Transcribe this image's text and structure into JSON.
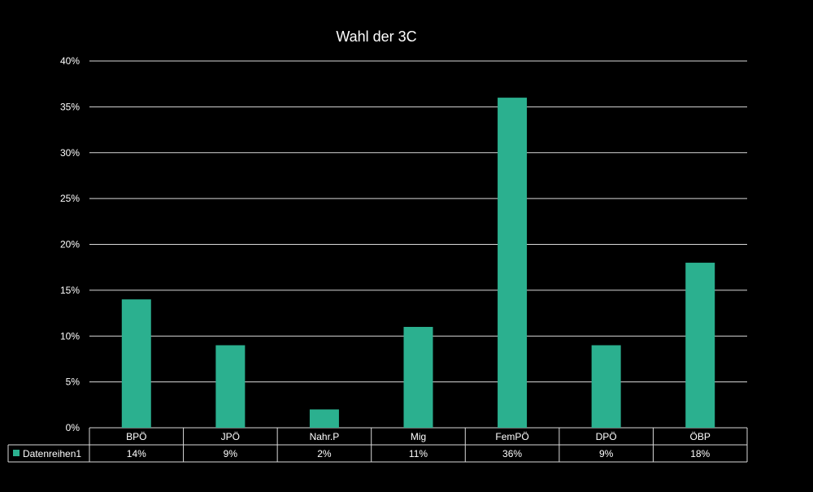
{
  "chart_data": {
    "type": "bar",
    "title": "Wahl der 3C",
    "categories": [
      "BPÖ",
      "JPÖ",
      "Nahr.P",
      "Mig",
      "FemPÖ",
      "DPÖ",
      "ÖBP"
    ],
    "series": [
      {
        "name": "Datenreihen1",
        "values": [
          0.14,
          0.09,
          0.02,
          0.11,
          0.36,
          0.09,
          0.18
        ],
        "labels": [
          "14%",
          "9%",
          "2%",
          "11%",
          "36%",
          "9%",
          "18%"
        ],
        "color": "#2bb08f"
      }
    ],
    "y_ticks": [
      "0%",
      "5%",
      "10%",
      "15%",
      "20%",
      "25%",
      "30%",
      "35%",
      "40%"
    ],
    "ylim": [
      0,
      0.4
    ],
    "grid": true,
    "legend": "data-table",
    "background": "#000000",
    "text_color": "#ffffff"
  }
}
